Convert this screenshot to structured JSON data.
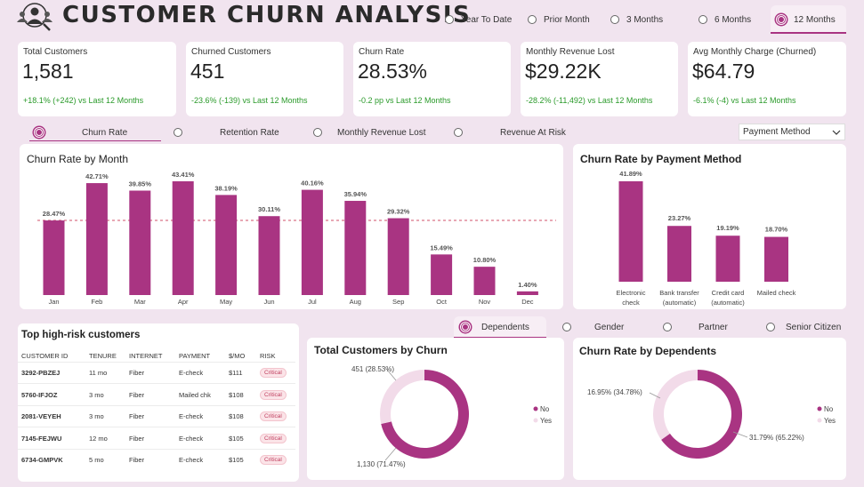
{
  "header": {
    "title": "CUSTOMER CHURN ANALYSIS",
    "periods": [
      "Year To Date",
      "Prior Month",
      "3 Months",
      "6 Months",
      "12 Months"
    ],
    "selected_period": "12 Months"
  },
  "kpis": [
    {
      "label": "Total Customers",
      "value": "1,581",
      "delta": "+18.1% (+242) vs Last 12 Months"
    },
    {
      "label": "Churned Customers",
      "value": "451",
      "delta": "-23.6% (-139) vs Last 12 Months"
    },
    {
      "label": "Churn Rate",
      "value": "28.53%",
      "delta": "-0.2 pp vs Last 12 Months"
    },
    {
      "label": "Monthly Revenue Lost",
      "value": "$29.22K",
      "delta": "-28.2% (-11,492) vs Last 12 Months"
    },
    {
      "label": "Avg Monthly Charge (Churned)",
      "value": "$64.79",
      "delta": "-6.1% (-4) vs Last 12 Months"
    }
  ],
  "metric_tabs": [
    "Churn Rate",
    "Retention Rate",
    "Monthly Revenue Lost",
    "Revenue At Risk"
  ],
  "selected_metric": "Churn Rate",
  "breakdown_dropdown": "Payment Method",
  "category_tabs": [
    "Dependents",
    "Gender",
    "Partner",
    "Senior Citizen"
  ],
  "selected_category": "Dependents",
  "colors": {
    "accent": "#a93482",
    "light": "#f2dbe9",
    "positive": "#2a9a2a",
    "background": "#f1e4ef"
  },
  "high_risk": {
    "title": "Top high-risk customers",
    "columns": [
      "CUSTOMER ID",
      "TENURE",
      "INTERNET",
      "PAYMENT",
      "$/MO",
      "RISK"
    ],
    "rows": [
      [
        "3292-PBZEJ",
        "11 mo",
        "Fiber",
        "E-check",
        "$111",
        "Critical"
      ],
      [
        "5760-IFJOZ",
        "3 mo",
        "Fiber",
        "Mailed chk",
        "$108",
        "Critical"
      ],
      [
        "2081-VEYEH",
        "3 mo",
        "Fiber",
        "E-check",
        "$108",
        "Critical"
      ],
      [
        "7145-FEJWU",
        "12 mo",
        "Fiber",
        "E-check",
        "$105",
        "Critical"
      ],
      [
        "6734-GMPVK",
        "5 mo",
        "Fiber",
        "E-check",
        "$105",
        "Critical"
      ]
    ]
  },
  "chart_data": [
    {
      "type": "bar",
      "title": "Churn Rate by Month",
      "categories": [
        "Jan",
        "Feb",
        "Mar",
        "Apr",
        "May",
        "Jun",
        "Jul",
        "Aug",
        "Sep",
        "Oct",
        "Nov",
        "Dec"
      ],
      "values": [
        28.47,
        42.71,
        39.85,
        43.41,
        38.19,
        30.11,
        40.16,
        35.94,
        29.32,
        15.49,
        10.8,
        1.4
      ],
      "data_labels": [
        "28.47%",
        "42.71%",
        "39.85%",
        "43.41%",
        "38.19%",
        "30.11%",
        "40.16%",
        "35.94%",
        "29.32%",
        "15.49%",
        "10.80%",
        "1.40%"
      ],
      "reference_line": 28.47,
      "ylim": [
        0,
        50
      ],
      "grid": false
    },
    {
      "type": "bar",
      "title": "Churn Rate by Payment Method",
      "categories": [
        [
          "Electronic",
          "check"
        ],
        [
          "Bank transfer",
          "(automatic)"
        ],
        [
          "Credit card",
          "(automatic)"
        ],
        [
          "Mailed check"
        ]
      ],
      "values": [
        41.89,
        23.27,
        19.19,
        18.7
      ],
      "data_labels": [
        "41.89%",
        "23.27%",
        "19.19%",
        "18.70%"
      ],
      "ylim": [
        0,
        50
      ],
      "grid": false
    },
    {
      "type": "pie",
      "title": "Total Customers by Churn",
      "labels": [
        "No",
        "Yes"
      ],
      "values": [
        1130,
        451
      ],
      "data_labels": [
        "1,130 (71.47%)",
        "451 (28.53%)"
      ],
      "legend": "right"
    },
    {
      "type": "pie",
      "title": "Churn Rate by Dependents",
      "labels": [
        "No",
        "Yes"
      ],
      "values": [
        31.79,
        16.95
      ],
      "data_labels": [
        "31.79% (65.22%)",
        "16.95% (34.78%)"
      ],
      "legend": "right"
    }
  ]
}
